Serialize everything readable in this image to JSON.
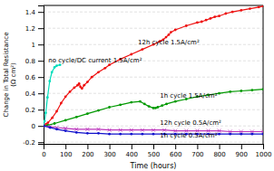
{
  "chart_data": {
    "type": "line",
    "x_label": "Time (hours)",
    "y_label": "Change in Total Resistance\n(Ω cm²)",
    "xlim": [
      0,
      1000
    ],
    "ylim": [
      -0.22,
      1.48
    ],
    "xticks": [
      0,
      100,
      200,
      300,
      400,
      500,
      600,
      700,
      800,
      900,
      1000
    ],
    "yticks": [
      -0.2,
      0.0,
      0.2,
      0.4,
      0.6,
      0.8,
      1.0,
      1.2,
      1.4
    ],
    "grid": true,
    "series": [
      {
        "color": "#00ddbb",
        "marker": "circle",
        "x": [
          0,
          5,
          10,
          18,
          28,
          38,
          50,
          60,
          75
        ],
        "values": [
          0.0,
          0.06,
          0.16,
          0.35,
          0.55,
          0.66,
          0.72,
          0.74,
          0.75
        ]
      },
      {
        "color": "#ee1111",
        "marker": "circle",
        "x": [
          0,
          10,
          20,
          40,
          60,
          80,
          100,
          120,
          140,
          155,
          162,
          168,
          175,
          185,
          200,
          220,
          250,
          280,
          300,
          350,
          400,
          450,
          500,
          530,
          545,
          558,
          570,
          580,
          600,
          650,
          700,
          720,
          740,
          760,
          780,
          800,
          830,
          860,
          900,
          940,
          980,
          1000
        ],
        "values": [
          0.0,
          0.02,
          0.04,
          0.1,
          0.18,
          0.28,
          0.36,
          0.42,
          0.47,
          0.5,
          0.52,
          0.48,
          0.46,
          0.5,
          0.54,
          0.6,
          0.66,
          0.71,
          0.75,
          0.82,
          0.88,
          0.94,
          1.0,
          1.04,
          1.06,
          1.09,
          1.12,
          1.15,
          1.18,
          1.23,
          1.27,
          1.28,
          1.3,
          1.32,
          1.34,
          1.35,
          1.38,
          1.4,
          1.42,
          1.44,
          1.46,
          1.47
        ]
      },
      {
        "color": "#009900",
        "marker": "circle",
        "x": [
          0,
          20,
          50,
          100,
          150,
          200,
          250,
          300,
          350,
          400,
          440,
          460,
          480,
          500,
          510,
          520,
          540,
          560,
          600,
          650,
          700,
          750,
          800,
          850,
          900,
          950,
          1000
        ],
        "values": [
          0.0,
          0.01,
          0.03,
          0.07,
          0.11,
          0.15,
          0.19,
          0.23,
          0.26,
          0.29,
          0.3,
          0.27,
          0.24,
          0.22,
          0.22,
          0.23,
          0.25,
          0.27,
          0.3,
          0.33,
          0.36,
          0.38,
          0.4,
          0.42,
          0.43,
          0.44,
          0.45
        ]
      },
      {
        "color": "#bb33bb",
        "marker": "x",
        "x": [
          0,
          30,
          60,
          100,
          150,
          200,
          250,
          300,
          350,
          400,
          450,
          500,
          550,
          600,
          650,
          700,
          750,
          800,
          850,
          900,
          950,
          1000
        ],
        "values": [
          0.0,
          -0.01,
          -0.02,
          -0.03,
          -0.04,
          -0.04,
          -0.04,
          -0.05,
          -0.05,
          -0.05,
          -0.05,
          -0.05,
          -0.05,
          -0.06,
          -0.06,
          -0.06,
          -0.06,
          -0.06,
          -0.07,
          -0.07,
          -0.07,
          -0.07
        ]
      },
      {
        "color": "#1111cc",
        "marker": "circle",
        "x": [
          0,
          30,
          60,
          100,
          150,
          200,
          250,
          300,
          350,
          400,
          450,
          500,
          550,
          600,
          650,
          700,
          750,
          800,
          850,
          900,
          950,
          1000
        ],
        "values": [
          0.0,
          -0.02,
          -0.04,
          -0.06,
          -0.08,
          -0.09,
          -0.09,
          -0.1,
          -0.1,
          -0.1,
          -0.1,
          -0.1,
          -0.1,
          -0.1,
          -0.1,
          -0.1,
          -0.1,
          -0.1,
          -0.1,
          -0.1,
          -0.1,
          -0.1
        ]
      }
    ],
    "annotations": [
      {
        "text": "no cycle/DC current 1.5A/cm²",
        "x": 22,
        "y": 0.78
      },
      {
        "text": "12h cycle 1.5A/cm²",
        "x": 430,
        "y": 1.0
      },
      {
        "text": "1h cycle 1.5A/cm²",
        "x": 530,
        "y": 0.35
      },
      {
        "text": "12h cycle 0.5A/cm²",
        "x": 530,
        "y": 0.01
      },
      {
        "text": "1h cycle 0.5A/cm²",
        "x": 530,
        "y": -0.14
      }
    ]
  }
}
